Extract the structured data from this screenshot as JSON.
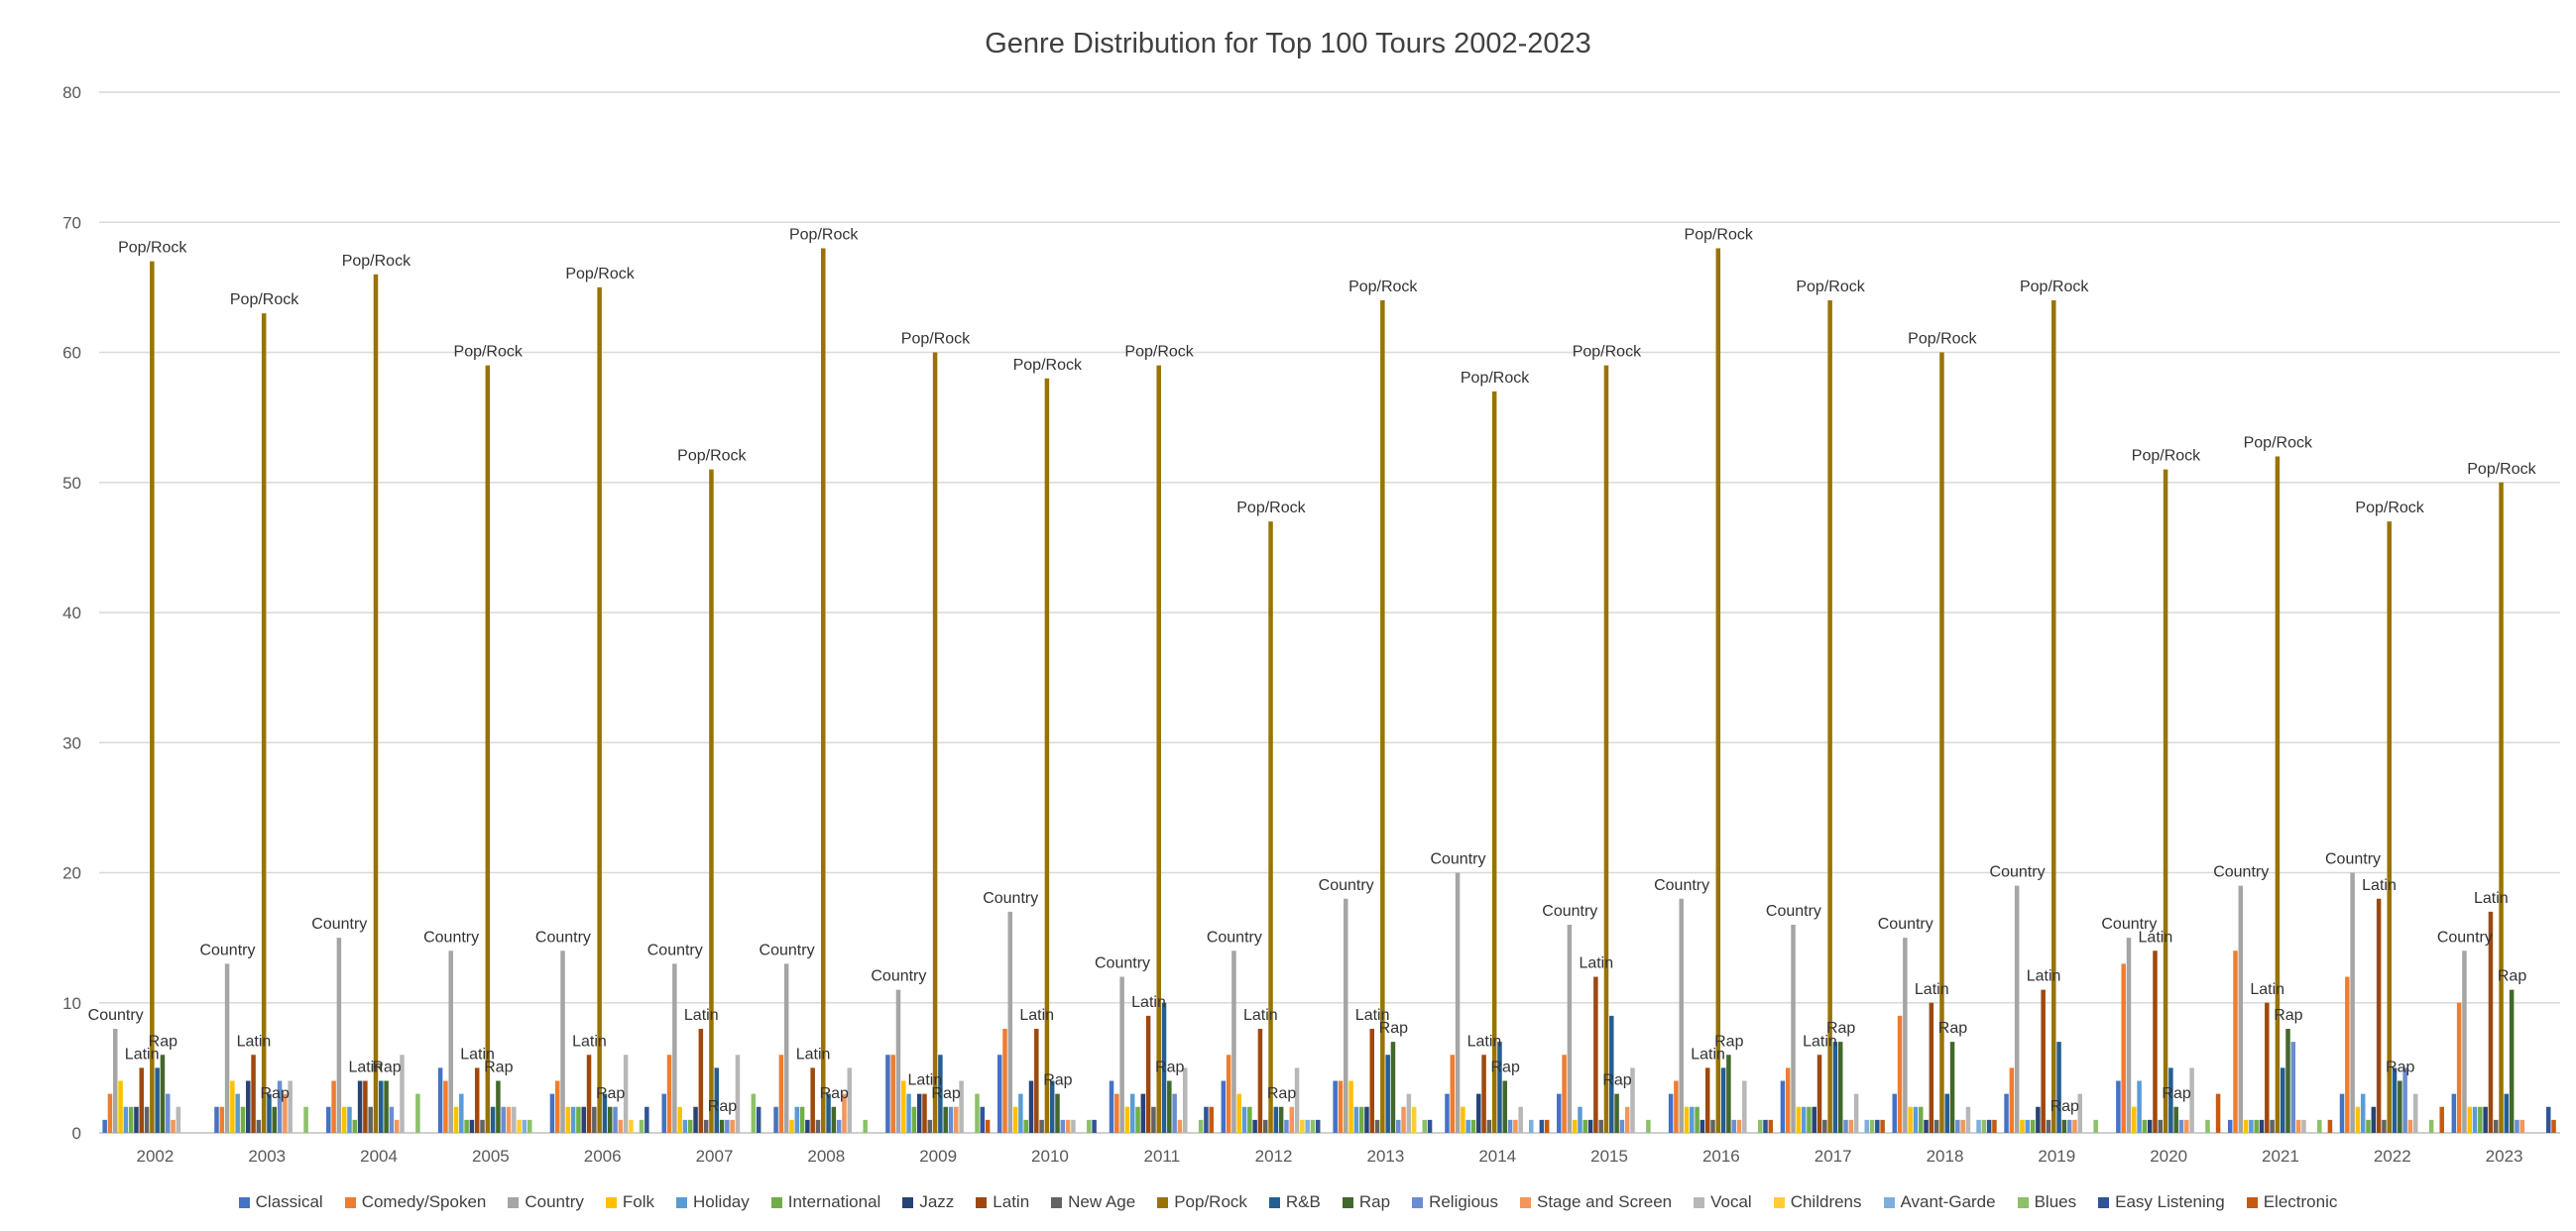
{
  "chart_data": {
    "type": "bar",
    "title": "Genre Distribution for Top 100 Tours 2002-2023",
    "xlabel": "",
    "ylabel": "",
    "ylim": [
      0,
      80
    ],
    "yticks": [
      "0",
      "10",
      "20",
      "30",
      "40",
      "50",
      "60",
      "70",
      "80"
    ],
    "grid": true,
    "legend_position": "bottom",
    "categories": [
      "2002",
      "2003",
      "2004",
      "2005",
      "2006",
      "2007",
      "2008",
      "2009",
      "2010",
      "2011",
      "2012",
      "2013",
      "2014",
      "2015",
      "2016",
      "2017",
      "2018",
      "2019",
      "2020",
      "2021",
      "2022",
      "2023"
    ],
    "series": [
      {
        "name": "Classical",
        "color": "#4472C4",
        "values": [
          1,
          2,
          2,
          5,
          3,
          3,
          2,
          6,
          6,
          4,
          4,
          4,
          3,
          3,
          3,
          4,
          3,
          3,
          4,
          1,
          3,
          3
        ]
      },
      {
        "name": "Comedy/Spoken",
        "color": "#ED7D31",
        "values": [
          3,
          2,
          4,
          4,
          4,
          6,
          6,
          6,
          8,
          3,
          6,
          4,
          6,
          6,
          4,
          5,
          9,
          5,
          13,
          14,
          12,
          10
        ]
      },
      {
        "name": "Country",
        "color": "#A5A5A5",
        "values": [
          8,
          13,
          15,
          14,
          14,
          13,
          13,
          11,
          17,
          12,
          14,
          18,
          20,
          16,
          18,
          16,
          15,
          19,
          15,
          19,
          20,
          14
        ]
      },
      {
        "name": "Folk",
        "color": "#FFC000",
        "values": [
          4,
          4,
          2,
          2,
          2,
          2,
          1,
          4,
          2,
          2,
          3,
          4,
          2,
          1,
          2,
          2,
          2,
          1,
          2,
          1,
          2,
          2
        ]
      },
      {
        "name": "Holiday",
        "color": "#5B9BD5",
        "values": [
          2,
          3,
          2,
          3,
          2,
          1,
          2,
          3,
          3,
          3,
          2,
          2,
          1,
          2,
          2,
          2,
          2,
          1,
          4,
          1,
          3,
          2
        ]
      },
      {
        "name": "International",
        "color": "#70AD47",
        "values": [
          2,
          2,
          1,
          1,
          2,
          1,
          2,
          2,
          1,
          2,
          2,
          2,
          1,
          1,
          2,
          2,
          2,
          1,
          1,
          1,
          1,
          2
        ]
      },
      {
        "name": "Jazz",
        "color": "#264478",
        "values": [
          2,
          4,
          4,
          1,
          2,
          2,
          1,
          3,
          4,
          3,
          1,
          2,
          3,
          1,
          1,
          2,
          1,
          2,
          1,
          1,
          2,
          2
        ]
      },
      {
        "name": "Latin",
        "color": "#9E480E",
        "values": [
          5,
          6,
          4,
          5,
          6,
          8,
          5,
          3,
          8,
          9,
          8,
          8,
          6,
          12,
          5,
          6,
          10,
          11,
          14,
          10,
          18,
          17
        ]
      },
      {
        "name": "New Age",
        "color": "#636363",
        "values": [
          2,
          1,
          2,
          1,
          2,
          1,
          1,
          1,
          1,
          2,
          1,
          1,
          1,
          1,
          1,
          1,
          1,
          1,
          1,
          1,
          1,
          1
        ]
      },
      {
        "name": "Pop/Rock",
        "color": "#997300",
        "values": [
          67,
          63,
          66,
          59,
          65,
          51,
          68,
          60,
          58,
          59,
          47,
          64,
          57,
          59,
          68,
          64,
          60,
          64,
          51,
          52,
          47,
          50
        ]
      },
      {
        "name": "R&B",
        "color": "#255E91",
        "values": [
          5,
          3,
          4,
          2,
          3,
          5,
          3,
          6,
          4,
          10,
          2,
          6,
          7,
          9,
          5,
          7,
          3,
          7,
          5,
          5,
          5,
          3
        ]
      },
      {
        "name": "Rap",
        "color": "#43682B",
        "values": [
          6,
          2,
          4,
          4,
          2,
          1,
          2,
          2,
          3,
          4,
          2,
          7,
          4,
          3,
          6,
          7,
          7,
          1,
          2,
          8,
          4,
          11
        ]
      },
      {
        "name": "Religious",
        "color": "#698ED0",
        "values": [
          3,
          4,
          2,
          2,
          2,
          1,
          1,
          2,
          1,
          3,
          1,
          1,
          1,
          1,
          1,
          1,
          1,
          1,
          1,
          7,
          5,
          1
        ]
      },
      {
        "name": "Stage and Screen",
        "color": "#F1975A",
        "values": [
          1,
          3,
          1,
          2,
          1,
          1,
          3,
          2,
          1,
          1,
          2,
          2,
          1,
          2,
          1,
          1,
          1,
          1,
          1,
          1,
          1,
          1
        ]
      },
      {
        "name": "Vocal",
        "color": "#B7B7B7",
        "values": [
          2,
          4,
          6,
          2,
          6,
          6,
          5,
          4,
          1,
          5,
          5,
          3,
          2,
          5,
          4,
          3,
          2,
          3,
          5,
          1,
          3,
          0
        ]
      },
      {
        "name": "Childrens",
        "color": "#FFCD33",
        "values": [
          0,
          0,
          0,
          1,
          1,
          0,
          0,
          0,
          0,
          0,
          1,
          2,
          0,
          0,
          0,
          0,
          0,
          0,
          0,
          0,
          0,
          0
        ]
      },
      {
        "name": "Avant-Garde",
        "color": "#7CAFDD",
        "values": [
          0,
          0,
          0,
          1,
          0,
          0,
          0,
          0,
          0,
          0,
          1,
          0,
          1,
          0,
          0,
          1,
          1,
          0,
          0,
          0,
          0,
          0
        ]
      },
      {
        "name": "Blues",
        "color": "#8CC168",
        "values": [
          0,
          2,
          3,
          1,
          1,
          3,
          1,
          3,
          1,
          1,
          1,
          1,
          0,
          1,
          1,
          1,
          1,
          1,
          1,
          1,
          1,
          0
        ]
      },
      {
        "name": "Easy Listening",
        "color": "#2F5597",
        "values": [
          0,
          0,
          0,
          0,
          2,
          2,
          0,
          2,
          1,
          2,
          1,
          1,
          1,
          0,
          1,
          1,
          1,
          0,
          0,
          0,
          0,
          2
        ]
      },
      {
        "name": "Electronic",
        "color": "#C55A11",
        "values": [
          0,
          0,
          0,
          0,
          0,
          0,
          0,
          1,
          0,
          2,
          0,
          0,
          1,
          0,
          1,
          1,
          1,
          0,
          3,
          1,
          2,
          1
        ]
      }
    ],
    "data_labels": [
      {
        "series": "Pop/Rock",
        "text": "Pop/Rock",
        "categories": [
          "2002",
          "2003",
          "2004",
          "2005",
          "2006",
          "2007",
          "2008",
          "2009",
          "2010",
          "2011",
          "2012",
          "2013",
          "2014",
          "2015",
          "2016",
          "2017",
          "2018",
          "2019",
          "2020",
          "2021",
          "2022",
          "2023"
        ]
      },
      {
        "series": "Country",
        "text": "Country",
        "categories": [
          "2002",
          "2003",
          "2004",
          "2005",
          "2006",
          "2007",
          "2008",
          "2009",
          "2010",
          "2011",
          "2012",
          "2013",
          "2014",
          "2015",
          "2016",
          "2017",
          "2018",
          "2019",
          "2020",
          "2021",
          "2022",
          "2023"
        ]
      },
      {
        "series": "Latin",
        "text": "Latin",
        "categories": [
          "2002",
          "2003",
          "2004",
          "2005",
          "2006",
          "2007",
          "2008",
          "2009",
          "2010",
          "2011",
          "2012",
          "2013",
          "2014",
          "2015",
          "2016",
          "2017",
          "2018",
          "2019",
          "2020",
          "2021",
          "2022",
          "2023"
        ]
      },
      {
        "series": "Rap",
        "text": "Rap",
        "categories": [
          "2002",
          "2003",
          "2004",
          "2005",
          "2006",
          "2007",
          "2008",
          "2009",
          "2010",
          "2011",
          "2012",
          "2013",
          "2014",
          "2015",
          "2016",
          "2017",
          "2018",
          "2019",
          "2020",
          "2021",
          "2022",
          "2023"
        ]
      }
    ]
  }
}
